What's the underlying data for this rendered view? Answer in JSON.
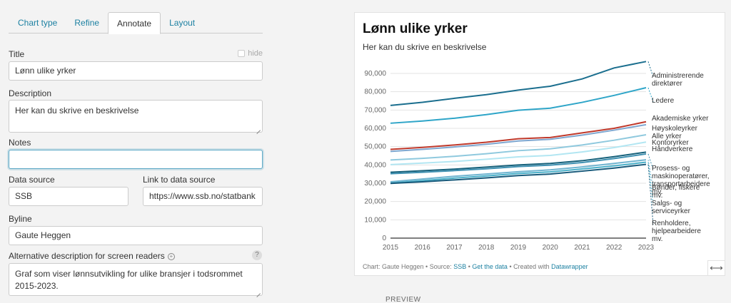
{
  "tabs": [
    {
      "label": "Chart type",
      "active": false
    },
    {
      "label": "Refine",
      "active": false
    },
    {
      "label": "Annotate",
      "active": true
    },
    {
      "label": "Layout",
      "active": false
    }
  ],
  "form": {
    "title_label": "Title",
    "title_value": "Lønn ulike yrker",
    "hide_label": "hide",
    "description_label": "Description",
    "description_value": "Her kan du skrive en beskrivelse",
    "notes_label": "Notes",
    "notes_value": "",
    "data_source_label": "Data source",
    "data_source_value": "SSB",
    "link_label": "Link to data source",
    "link_value": "https://www.ssb.no/statbank",
    "byline_label": "Byline",
    "byline_value": "Gaute Heggen",
    "alt_label": "Alternative description for screen readers",
    "alt_value": "Graf som viser lønnsutvikling for ulike bransjer i todsrommet 2015-2023.",
    "help_symbol": "?",
    "info_symbol": "+"
  },
  "preview": {
    "label": "PREVIEW",
    "footer_prefix": "Chart: Gaute Heggen • Source: ",
    "footer_source": "SSB",
    "footer_sep": " • ",
    "footer_getdata": "Get the data",
    "footer_created": " • Created with ",
    "footer_dw": "Datawrapper",
    "expand_symbol": "⟷"
  },
  "chart_data": {
    "type": "line",
    "title": "Lønn ulike yrker",
    "subtitle": "Her kan du skrive en beskrivelse",
    "x": [
      2015,
      2016,
      2017,
      2018,
      2019,
      2020,
      2021,
      2022,
      2023
    ],
    "ylim": [
      0,
      90000
    ],
    "yticks": [
      "0",
      "10,000",
      "20,000",
      "30,000",
      "40,000",
      "50,000",
      "60,000",
      "70,000",
      "80,000",
      "90,000"
    ],
    "grid": true,
    "series": [
      {
        "name": "Administrerende direktører",
        "label_lines": [
          "Administrerende",
          "direktører"
        ],
        "color": "#1a6e8e",
        "values": [
          72500,
          74200,
          76400,
          78400,
          80900,
          83000,
          87000,
          93000,
          96500
        ]
      },
      {
        "name": "Ledere",
        "label_lines": [
          "Ledere"
        ],
        "color": "#2ea5c8",
        "values": [
          62800,
          64000,
          65500,
          67500,
          69900,
          71000,
          74200,
          78000,
          82200
        ]
      },
      {
        "name": "Akademiske yrker",
        "label_lines": [
          "Akademiske yrker"
        ],
        "color": "#c0392b",
        "values": [
          48500,
          49600,
          50900,
          52400,
          54300,
          55000,
          57500,
          60000,
          63600
        ]
      },
      {
        "name": "Høyskoleyrker",
        "label_lines": [
          "Høyskoleyrker"
        ],
        "color": "#7fa7d0",
        "values": [
          47400,
          48500,
          49800,
          51300,
          53100,
          54000,
          56300,
          59000,
          62000
        ]
      },
      {
        "name": "Alle yrker",
        "label_lines": [
          "Alle yrker"
        ],
        "color": "#8fc9de",
        "values": [
          42700,
          43600,
          44700,
          46100,
          47800,
          48800,
          50900,
          53500,
          56500
        ]
      },
      {
        "name": "Kontoryrker",
        "label_lines": [
          "Kontoryrker"
        ],
        "color": "#b2e6f2",
        "values": [
          40200,
          41000,
          41900,
          43100,
          44400,
          45200,
          47100,
          49500,
          52500
        ]
      },
      {
        "name": "Håndverkere",
        "label_lines": [
          "Håndverkere"
        ],
        "color": "#15607a",
        "values": [
          36000,
          36800,
          37700,
          38800,
          40000,
          40800,
          42300,
          44500,
          47000
        ]
      },
      {
        "name": "Prosess- og maskinoperatører, transportarbeidere mv.",
        "label_lines": [
          "Prosess- og",
          "maskinoperatører,",
          "transportarbeidere",
          "mv."
        ],
        "color": "#3d8fb0",
        "values": [
          35200,
          36000,
          36900,
          37900,
          39100,
          39900,
          41300,
          43500,
          46000
        ]
      },
      {
        "name": "Bønder, fiskere mv.",
        "label_lines": [
          "Bønder, fiskere",
          "mv."
        ],
        "color": "#6fb4d0",
        "values": [
          30800,
          32300,
          33800,
          35000,
          36300,
          37300,
          38900,
          40800,
          42800
        ]
      },
      {
        "name": "Salgs- og serviceyrker",
        "label_lines": [
          "Salgs- og",
          "serviceyrker"
        ],
        "color": "#4ab0c9",
        "values": [
          30100,
          31400,
          32800,
          34000,
          35300,
          36200,
          37800,
          39500,
          41500
        ]
      },
      {
        "name": "Renholdere, hjelpearbeidere mv.",
        "label_lines": [
          "Renholdere,",
          "hjelpearbeidere",
          "mv."
        ],
        "color": "#17597a",
        "values": [
          29900,
          30800,
          31800,
          32900,
          34200,
          35000,
          36600,
          38300,
          40300
        ]
      }
    ]
  }
}
